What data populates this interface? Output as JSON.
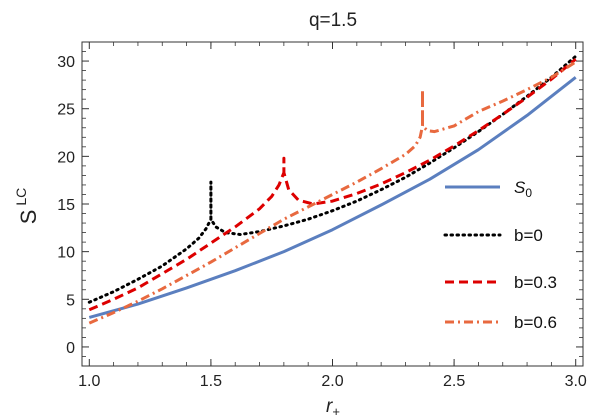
{
  "chart_data": {
    "type": "line",
    "title": "q=1.5",
    "xlabel_main": "r",
    "xlabel_sub": "+",
    "ylabel_main": "S",
    "ylabel_sup": "LC",
    "xlim": [
      0.97,
      3.03
    ],
    "ylim": [
      -2,
      32
    ],
    "xticks": [
      {
        "value": 1.0,
        "label": "1.0"
      },
      {
        "value": 1.5,
        "label": "1.5"
      },
      {
        "value": 2.0,
        "label": "2.0"
      },
      {
        "value": 2.5,
        "label": "2.5"
      },
      {
        "value": 3.0,
        "label": "3.0"
      }
    ],
    "yticks": [
      {
        "value": 0,
        "label": "0"
      },
      {
        "value": 5,
        "label": "5"
      },
      {
        "value": 10,
        "label": "10"
      },
      {
        "value": 15,
        "label": "15"
      },
      {
        "value": 20,
        "label": "20"
      },
      {
        "value": 25,
        "label": "25"
      },
      {
        "value": 30,
        "label": "30"
      }
    ],
    "grid": false,
    "legend_position": "right",
    "series": [
      {
        "name": "S",
        "name_sub": "0",
        "style": "solid",
        "color": "#5b7fbf",
        "points": [
          [
            1.0,
            3.1
          ],
          [
            1.2,
            4.5
          ],
          [
            1.4,
            6.2
          ],
          [
            1.6,
            8.0
          ],
          [
            1.8,
            10.0
          ],
          [
            2.0,
            12.3
          ],
          [
            2.2,
            14.9
          ],
          [
            2.4,
            17.6
          ],
          [
            2.6,
            20.7
          ],
          [
            2.8,
            24.3
          ],
          [
            3.0,
            28.3
          ]
        ]
      },
      {
        "name": "b=0",
        "style": "dotted",
        "color": "#000000",
        "points": [
          [
            1.0,
            4.7
          ],
          [
            1.1,
            5.8
          ],
          [
            1.2,
            7.1
          ],
          [
            1.3,
            8.5
          ],
          [
            1.4,
            10.3
          ],
          [
            1.45,
            11.4
          ],
          [
            1.48,
            12.4
          ],
          [
            1.5,
            13.4
          ],
          [
            1.5,
            17.3
          ],
          [
            1.5,
            13.4
          ],
          [
            1.52,
            12.6
          ],
          [
            1.56,
            12.0
          ],
          [
            1.62,
            11.8
          ],
          [
            1.7,
            12.1
          ],
          [
            1.8,
            12.7
          ],
          [
            1.9,
            13.4
          ],
          [
            2.0,
            14.3
          ],
          [
            2.1,
            15.3
          ],
          [
            2.2,
            16.5
          ],
          [
            2.3,
            17.8
          ],
          [
            2.4,
            19.3
          ],
          [
            2.5,
            20.9
          ],
          [
            2.6,
            22.6
          ],
          [
            2.7,
            24.4
          ],
          [
            2.8,
            26.3
          ],
          [
            2.9,
            28.3
          ],
          [
            3.0,
            30.5
          ]
        ]
      },
      {
        "name": "b=0.3",
        "style": "dashed",
        "color": "#dd0000",
        "points": [
          [
            1.0,
            3.9
          ],
          [
            1.1,
            5.0
          ],
          [
            1.2,
            6.2
          ],
          [
            1.3,
            7.7
          ],
          [
            1.4,
            9.2
          ],
          [
            1.5,
            10.9
          ],
          [
            1.6,
            12.6
          ],
          [
            1.7,
            14.5
          ],
          [
            1.75,
            15.8
          ],
          [
            1.78,
            17.0
          ],
          [
            1.8,
            18.3
          ],
          [
            1.8,
            19.8
          ],
          [
            1.8,
            18.3
          ],
          [
            1.82,
            16.5
          ],
          [
            1.86,
            15.4
          ],
          [
            1.92,
            15.0
          ],
          [
            2.0,
            15.3
          ],
          [
            2.1,
            16.1
          ],
          [
            2.2,
            17.1
          ],
          [
            2.3,
            18.3
          ],
          [
            2.4,
            19.6
          ],
          [
            2.5,
            21.1
          ],
          [
            2.6,
            22.7
          ],
          [
            2.7,
            24.4
          ],
          [
            2.8,
            26.2
          ],
          [
            2.9,
            28.1
          ],
          [
            3.0,
            30.2
          ]
        ]
      },
      {
        "name": "b=0.6",
        "style": "dashdot",
        "color": "#e8693f",
        "points": [
          [
            1.0,
            2.5
          ],
          [
            1.1,
            3.6
          ],
          [
            1.2,
            4.8
          ],
          [
            1.3,
            6.1
          ],
          [
            1.4,
            7.5
          ],
          [
            1.5,
            8.9
          ],
          [
            1.6,
            10.4
          ],
          [
            1.7,
            11.9
          ],
          [
            1.8,
            13.4
          ],
          [
            1.9,
            14.7
          ],
          [
            2.0,
            16.0
          ],
          [
            2.1,
            17.3
          ],
          [
            2.2,
            18.7
          ],
          [
            2.3,
            20.2
          ],
          [
            2.34,
            21.1
          ],
          [
            2.36,
            22.0
          ],
          [
            2.37,
            23.2
          ],
          [
            2.37,
            27.0
          ],
          [
            2.37,
            23.2
          ],
          [
            2.39,
            22.7
          ],
          [
            2.42,
            22.6
          ],
          [
            2.5,
            23.2
          ],
          [
            2.6,
            24.7
          ],
          [
            2.7,
            25.8
          ],
          [
            2.8,
            27.0
          ],
          [
            2.9,
            28.3
          ],
          [
            3.0,
            29.9
          ]
        ]
      }
    ]
  }
}
